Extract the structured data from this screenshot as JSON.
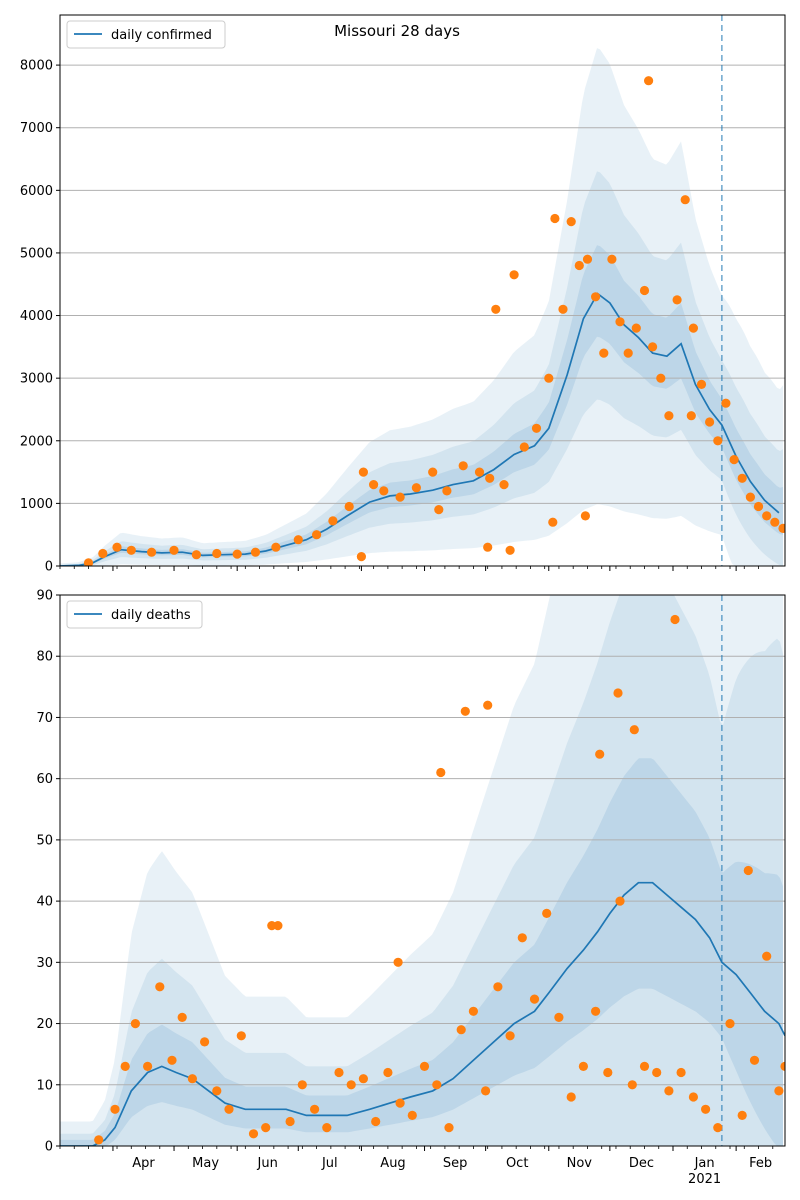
{
  "figure": {
    "title": "Missouri 28 days"
  },
  "chart_data": [
    {
      "type": "line",
      "panel": "top",
      "title": "Missouri 28 days",
      "xlabel": "",
      "ylabel": "",
      "ylim": [
        0,
        8800
      ],
      "yticks": [
        0,
        1000,
        2000,
        3000,
        4000,
        5000,
        6000,
        7000,
        8000
      ],
      "grid": "horizontal",
      "legend": "top-left",
      "forecast_start": "2021-01-25",
      "line_color": "#1f77b4",
      "point_color": "#ff7f0e",
      "band_color": "#1f77b4",
      "series": [
        {
          "name": "daily confirmed",
          "kind": "line",
          "x": [
            "2020-03-06",
            "2020-03-15",
            "2020-03-22",
            "2020-03-28",
            "2020-04-05",
            "2020-04-15",
            "2020-04-25",
            "2020-05-05",
            "2020-05-15",
            "2020-05-25",
            "2020-06-05",
            "2020-06-15",
            "2020-06-25",
            "2020-07-05",
            "2020-07-15",
            "2020-07-25",
            "2020-08-05",
            "2020-08-15",
            "2020-08-25",
            "2020-09-05",
            "2020-09-15",
            "2020-09-25",
            "2020-10-05",
            "2020-10-15",
            "2020-10-25",
            "2020-11-01",
            "2020-11-10",
            "2020-11-18",
            "2020-11-25",
            "2020-12-01",
            "2020-12-08",
            "2020-12-15",
            "2020-12-22",
            "2020-12-29",
            "2021-01-05",
            "2021-01-12",
            "2021-01-19",
            "2021-01-25",
            "2021-02-01",
            "2021-02-08",
            "2021-02-15",
            "2021-02-22"
          ],
          "y": [
            0,
            10,
            50,
            150,
            260,
            230,
            210,
            220,
            170,
            180,
            190,
            240,
            330,
            420,
            590,
            800,
            1020,
            1120,
            1150,
            1210,
            1300,
            1360,
            1540,
            1780,
            1920,
            2200,
            3050,
            3950,
            4350,
            4200,
            3850,
            3650,
            3400,
            3350,
            3550,
            2900,
            2500,
            2250,
            1750,
            1350,
            1050,
            850
          ]
        },
        {
          "name": "daily confirmed",
          "kind": "points",
          "x": [
            "2020-03-20",
            "2020-03-27",
            "2020-04-03",
            "2020-04-10",
            "2020-04-20",
            "2020-05-01",
            "2020-05-12",
            "2020-05-22",
            "2020-06-01",
            "2020-06-10",
            "2020-06-20",
            "2020-07-01",
            "2020-07-10",
            "2020-07-18",
            "2020-07-26",
            "2020-08-02",
            "2020-08-07",
            "2020-08-12",
            "2020-08-20",
            "2020-08-28",
            "2020-09-05",
            "2020-09-12",
            "2020-09-20",
            "2020-09-28",
            "2020-10-03",
            "2020-10-06",
            "2020-10-10",
            "2020-10-15",
            "2020-10-20",
            "2020-10-26",
            "2020-11-01",
            "2020-11-04",
            "2020-11-08",
            "2020-11-12",
            "2020-11-16",
            "2020-11-20",
            "2020-11-24",
            "2020-11-28",
            "2020-12-02",
            "2020-12-06",
            "2020-12-10",
            "2020-12-14",
            "2020-12-18",
            "2020-12-22",
            "2020-12-26",
            "2020-12-30",
            "2021-01-03",
            "2021-01-07",
            "2021-01-11",
            "2021-01-15",
            "2021-01-19",
            "2021-01-23",
            "2021-01-27",
            "2021-01-31",
            "2021-02-04",
            "2021-02-08",
            "2021-02-12",
            "2021-02-16",
            "2021-02-20",
            "2021-02-24",
            "2020-08-01",
            "2020-09-08",
            "2020-10-02",
            "2020-10-13",
            "2020-11-03",
            "2020-11-19",
            "2020-12-20",
            "2021-01-10"
          ],
          "y": [
            50,
            200,
            300,
            250,
            220,
            250,
            180,
            200,
            190,
            220,
            300,
            420,
            500,
            720,
            950,
            1500,
            1300,
            1200,
            1100,
            1250,
            1500,
            1200,
            1600,
            1500,
            1400,
            4100,
            1300,
            4650,
            1900,
            2200,
            3000,
            5550,
            4100,
            5500,
            4800,
            4900,
            4300,
            3400,
            4900,
            3900,
            3400,
            3800,
            4400,
            3500,
            3000,
            2400,
            4250,
            5850,
            3800,
            2900,
            2300,
            2000,
            2600,
            1700,
            1400,
            1100,
            950,
            800,
            700,
            600,
            150,
            900,
            300,
            250,
            700,
            800,
            7750,
            2400
          ]
        }
      ]
    },
    {
      "type": "line",
      "panel": "bottom",
      "title": "",
      "xlabel": "",
      "ylabel": "",
      "ylim": [
        0,
        90
      ],
      "yticks": [
        0,
        10,
        20,
        30,
        40,
        50,
        60,
        70,
        80,
        90
      ],
      "xticks": [
        "Apr",
        "May",
        "Jun",
        "Jul",
        "Aug",
        "Sep",
        "Oct",
        "Nov",
        "Dec",
        "Jan",
        "Feb"
      ],
      "xtick_year": "2021",
      "grid": "horizontal",
      "legend": "top-left",
      "forecast_start": "2021-01-25",
      "series": [
        {
          "name": "daily deaths",
          "kind": "line",
          "x": [
            "2020-03-06",
            "2020-03-15",
            "2020-03-22",
            "2020-03-28",
            "2020-04-02",
            "2020-04-10",
            "2020-04-18",
            "2020-04-25",
            "2020-05-02",
            "2020-05-10",
            "2020-05-18",
            "2020-05-26",
            "2020-06-05",
            "2020-06-15",
            "2020-06-25",
            "2020-07-05",
            "2020-07-15",
            "2020-07-25",
            "2020-08-05",
            "2020-08-15",
            "2020-08-25",
            "2020-09-05",
            "2020-09-15",
            "2020-09-25",
            "2020-10-05",
            "2020-10-15",
            "2020-10-25",
            "2020-11-01",
            "2020-11-10",
            "2020-11-18",
            "2020-11-25",
            "2020-12-01",
            "2020-12-08",
            "2020-12-15",
            "2020-12-22",
            "2020-12-29",
            "2021-01-05",
            "2021-01-12",
            "2021-01-19",
            "2021-01-25",
            "2021-02-01",
            "2021-02-08",
            "2021-02-15",
            "2021-02-22",
            "2021-02-25"
          ],
          "y": [
            0,
            0,
            0,
            1,
            3,
            9,
            12,
            13,
            12,
            11,
            9,
            7,
            6,
            6,
            6,
            5,
            5,
            5,
            6,
            7,
            8,
            9,
            11,
            14,
            17,
            20,
            22,
            25,
            29,
            32,
            35,
            38,
            41,
            43,
            43,
            41,
            39,
            37,
            34,
            30,
            28,
            25,
            22,
            20,
            18
          ]
        },
        {
          "name": "daily deaths",
          "kind": "points",
          "x": [
            "2020-03-25",
            "2020-04-02",
            "2020-04-07",
            "2020-04-12",
            "2020-04-18",
            "2020-04-24",
            "2020-04-30",
            "2020-05-05",
            "2020-05-10",
            "2020-05-16",
            "2020-05-22",
            "2020-05-28",
            "2020-06-03",
            "2020-06-09",
            "2020-06-15",
            "2020-06-21",
            "2020-06-27",
            "2020-07-03",
            "2020-07-09",
            "2020-07-15",
            "2020-07-21",
            "2020-07-27",
            "2020-08-02",
            "2020-08-08",
            "2020-08-14",
            "2020-08-20",
            "2020-08-26",
            "2020-09-01",
            "2020-09-07",
            "2020-09-13",
            "2020-09-19",
            "2020-09-25",
            "2020-10-01",
            "2020-10-07",
            "2020-10-13",
            "2020-10-19",
            "2020-10-25",
            "2020-10-31",
            "2020-11-06",
            "2020-11-12",
            "2020-11-18",
            "2020-11-24",
            "2020-11-30",
            "2020-12-06",
            "2020-12-12",
            "2020-12-18",
            "2020-12-24",
            "2020-12-30",
            "2021-01-05",
            "2021-01-11",
            "2021-01-17",
            "2021-01-23",
            "2021-01-29",
            "2021-02-04",
            "2021-02-10",
            "2021-02-16",
            "2021-02-22",
            "2021-02-25",
            "2020-06-18",
            "2020-08-19",
            "2020-09-09",
            "2020-09-21",
            "2020-10-02",
            "2020-11-26",
            "2020-12-05",
            "2020-12-13",
            "2021-01-02",
            "2021-02-07"
          ],
          "y": [
            1,
            6,
            13,
            20,
            13,
            26,
            14,
            21,
            11,
            17,
            9,
            6,
            18,
            2,
            3,
            36,
            4,
            10,
            6,
            3,
            12,
            10,
            11,
            4,
            12,
            7,
            5,
            13,
            10,
            3,
            19,
            22,
            9,
            26,
            18,
            34,
            24,
            38,
            21,
            8,
            13,
            22,
            12,
            40,
            10,
            13,
            12,
            9,
            12,
            8,
            6,
            3,
            20,
            5,
            14,
            31,
            9,
            13,
            36,
            30,
            61,
            71,
            72,
            64,
            74,
            68,
            86,
            45
          ]
        }
      ]
    }
  ]
}
